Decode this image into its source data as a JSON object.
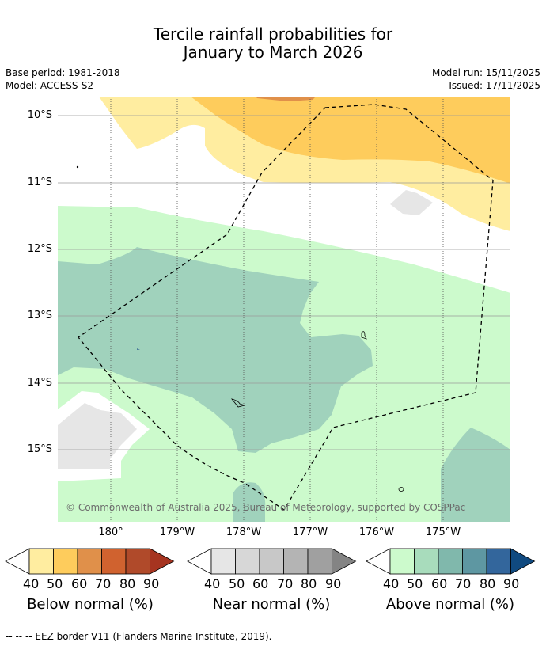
{
  "title": {
    "line1": "Tercile rainfall probabilities for",
    "line2": "January to March 2026"
  },
  "meta": {
    "base_period": "Base period: 1981-2018",
    "model": "Model: ACCESS-S2",
    "model_run": "Model run: 15/11/2025",
    "issued": "Issued: 17/11/2025"
  },
  "map": {
    "lat_labels": [
      "10°S",
      "11°S",
      "12°S",
      "13°S",
      "14°S",
      "15°S"
    ],
    "lon_labels": [
      "180°",
      "179°W",
      "178°W",
      "177°W",
      "176°W",
      "175°W"
    ],
    "copyright": "© Commonwealth of Australia 2025, Bureau of Meteorology, supported by COSPPac",
    "colors": {
      "below_50": "#ffeda0",
      "below_60": "#fecc5c",
      "below_70": "#e0904a",
      "near_60": "#e6e6e6",
      "above_40": "#ccfacc",
      "above_50": "#a0d2bc"
    }
  },
  "colorbars": {
    "below": {
      "title": "Below normal (%)",
      "ticks": [
        "40",
        "50",
        "60",
        "70",
        "80",
        "90"
      ],
      "colors": [
        "#ffeda0",
        "#fecc5c",
        "#e0904a",
        "#d0622f",
        "#b04a2a",
        "#a63420"
      ]
    },
    "near": {
      "title": "Near normal (%)",
      "ticks": [
        "40",
        "50",
        "60",
        "70",
        "80",
        "90"
      ],
      "colors": [
        "#e6e6e6",
        "#d7d7d7",
        "#c8c8c8",
        "#b4b4b4",
        "#a0a0a0",
        "#848484"
      ]
    },
    "above": {
      "title": "Above normal (%)",
      "ticks": [
        "40",
        "50",
        "60",
        "70",
        "80",
        "90"
      ],
      "colors": [
        "#ccfacc",
        "#a8dcbc",
        "#80b8ac",
        "#5e97a2",
        "#33669c",
        "#104a80"
      ]
    }
  },
  "footnote": "--  --  -- EEZ border V11 (Flanders Marine Institute, 2019)."
}
